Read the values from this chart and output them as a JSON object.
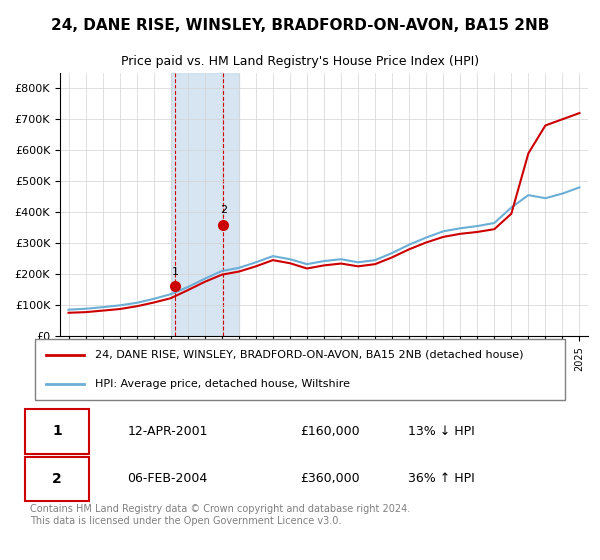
{
  "title": "24, DANE RISE, WINSLEY, BRADFORD-ON-AVON, BA15 2NB",
  "subtitle": "Price paid vs. HM Land Registry's House Price Index (HPI)",
  "legend_line1": "24, DANE RISE, WINSLEY, BRADFORD-ON-AVON, BA15 2NB (detached house)",
  "legend_line2": "HPI: Average price, detached house, Wiltshire",
  "transaction1_label": "1",
  "transaction1_date": "12-APR-2001",
  "transaction1_price": "£160,000",
  "transaction1_hpi": "13% ↓ HPI",
  "transaction2_label": "2",
  "transaction2_date": "06-FEB-2004",
  "transaction2_price": "£360,000",
  "transaction2_hpi": "36% ↑ HPI",
  "footer": "Contains HM Land Registry data © Crown copyright and database right 2024.\nThis data is licensed under the Open Government Licence v3.0.",
  "hpi_color": "#6baed6",
  "price_color": "#cc0000",
  "highlight_color": "#c6dbef",
  "transaction1_x": 2001.28,
  "transaction1_y": 160000,
  "transaction2_x": 2004.09,
  "transaction2_y": 360000,
  "highlight_x1": 2001.0,
  "highlight_x2": 2005.0,
  "ylim": [
    0,
    850000
  ],
  "xlim": [
    1994.5,
    2025.5
  ],
  "hpi_years": [
    1995,
    1996,
    1997,
    1998,
    1999,
    2000,
    2001,
    2002,
    2003,
    2004,
    2005,
    2006,
    2007,
    2008,
    2009,
    2010,
    2011,
    2012,
    2013,
    2014,
    2015,
    2016,
    2017,
    2018,
    2019,
    2020,
    2021,
    2022,
    2023,
    2024,
    2025
  ],
  "hpi_values": [
    85000,
    88000,
    93000,
    99000,
    107000,
    120000,
    135000,
    158000,
    185000,
    210000,
    220000,
    238000,
    258000,
    248000,
    232000,
    242000,
    248000,
    238000,
    245000,
    268000,
    295000,
    318000,
    338000,
    348000,
    355000,
    365000,
    415000,
    455000,
    445000,
    460000,
    480000
  ],
  "price_years": [
    1995,
    1996,
    1997,
    1998,
    1999,
    2000,
    2001,
    2002,
    2003,
    2004,
    2005,
    2006,
    2007,
    2008,
    2009,
    2010,
    2011,
    2012,
    2013,
    2014,
    2015,
    2016,
    2017,
    2018,
    2019,
    2020,
    2021,
    2022,
    2023,
    2024,
    2025
  ],
  "price_values": [
    75000,
    77000,
    82000,
    87000,
    96000,
    108000,
    122000,
    148000,
    175000,
    198000,
    208000,
    225000,
    245000,
    235000,
    218000,
    228000,
    234000,
    225000,
    232000,
    254000,
    280000,
    302000,
    320000,
    330000,
    336000,
    345000,
    395000,
    590000,
    680000,
    700000,
    720000
  ]
}
